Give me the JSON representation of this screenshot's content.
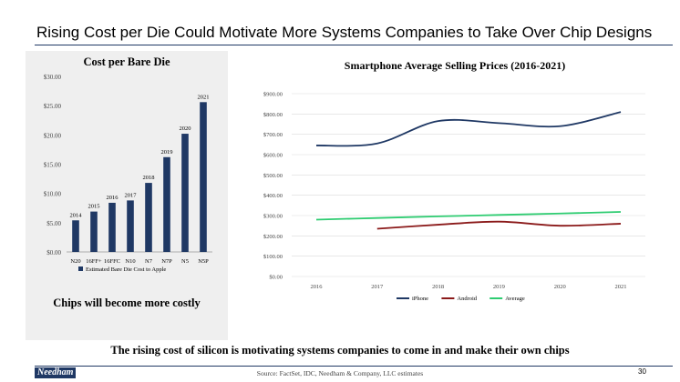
{
  "slide": {
    "title": "Rising Cost per Die Could Motivate More Systems Companies to Take Over Chip Designs",
    "footer_text": "The rising cost of silicon is motivating systems companies to come in and make their own chips",
    "source": "Source: FactSet, IDC, Needham & Company, LLC estimates",
    "page_number": "30",
    "logo_text": "Needham",
    "accent_color": "#1f3864"
  },
  "left_panel": {
    "caption": "Chips will become more costly"
  },
  "chart_data": [
    {
      "type": "bar",
      "title": "Cost per Bare Die",
      "categories": [
        "N20",
        "16FF+",
        "16FFC",
        "N10",
        "N7",
        "N7P",
        "N5",
        "N5P"
      ],
      "data_labels": [
        "2014",
        "2015",
        "2016",
        "2017",
        "2018",
        "2019",
        "2020",
        "2021"
      ],
      "series": [
        {
          "name": "Estimated Bare Die Cost to Apple",
          "values": [
            5.4,
            6.9,
            8.4,
            8.8,
            11.8,
            16.2,
            20.2,
            25.6
          ],
          "color": "#1f3864"
        }
      ],
      "ylim": [
        0,
        30
      ],
      "yticks": [
        "$0.00",
        "$5.00",
        "$10.00",
        "$15.00",
        "$20.00",
        "$25.00",
        "$30.00"
      ],
      "grid": false,
      "legend_position": "bottom"
    },
    {
      "type": "line",
      "title": "Smartphone Average Selling Prices (2016-2021)",
      "x": [
        "2016",
        "2017",
        "2018",
        "2019",
        "2020",
        "2021"
      ],
      "series": [
        {
          "name": "iPhone",
          "values": [
            645,
            655,
            765,
            755,
            740,
            810
          ],
          "color": "#1f3864"
        },
        {
          "name": "Android",
          "values": [
            null,
            235,
            255,
            270,
            250,
            260
          ],
          "color": "#8b1a1a"
        },
        {
          "name": "Average",
          "values": [
            280,
            288,
            296,
            303,
            310,
            318
          ],
          "color": "#2ecc71"
        }
      ],
      "ylim": [
        0,
        900
      ],
      "yticks": [
        "$0.00",
        "$100.00",
        "$200.00",
        "$300.00",
        "$400.00",
        "$500.00",
        "$600.00",
        "$700.00",
        "$800.00",
        "$900.00"
      ],
      "grid": true,
      "legend_position": "bottom"
    }
  ]
}
